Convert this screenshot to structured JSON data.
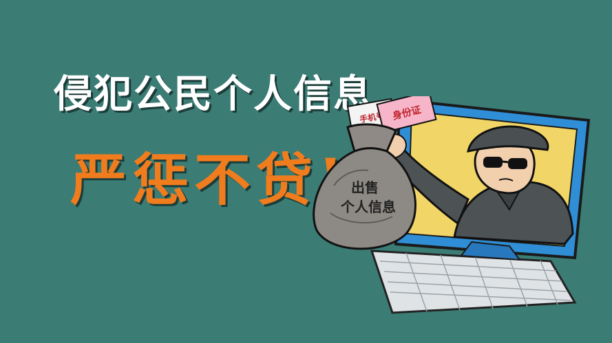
{
  "headline": "侵犯公民个人信息",
  "subhead": "严惩不贷!",
  "bag": {
    "line1": "出售",
    "line2": "个人信息"
  },
  "cards": {
    "card1": "手机号",
    "card2": "身份证"
  },
  "colors": {
    "background": "#3b7c75",
    "headline": "#ffffff",
    "subhead": "#f07c1e",
    "monitor": "#2f8ed6",
    "screen": "#f1d667"
  }
}
